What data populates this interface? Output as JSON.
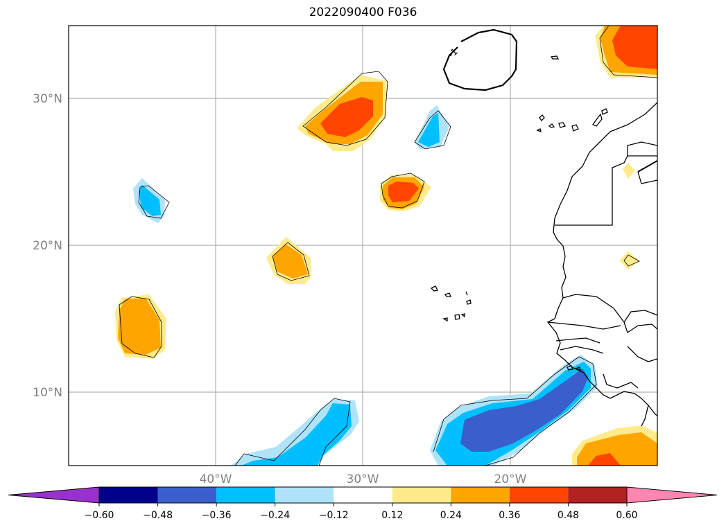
{
  "title": "2022090400 F036",
  "colors": {
    "pos_0.12_0.24": "#ffeb8c",
    "pos_0.24_0.36": "#ffa500",
    "pos_0.36_0.48": "#ff4500",
    "pos_0.48_0.60": "#b22222",
    "pos_over_0.60": "#ff86b0",
    "neg_-0.24_-0.12": "#afe3fa",
    "neg_-0.36_-0.24": "#00bfff",
    "neg_-0.48_-0.36": "#3a5fcd",
    "neg_-0.60_-0.48": "#00008b",
    "neg_under_-0.60": "#9932cc",
    "zero": "#ffffff"
  },
  "axes": {
    "lat_labels": [
      "30°N",
      "20°N",
      "10°N"
    ],
    "lon_labels": [
      "40°W",
      "30°W",
      "20°W"
    ]
  },
  "contour_label": "-1",
  "colorbar": {
    "ticks": [
      "−0.60",
      "−0.48",
      "−0.36",
      "−0.24",
      "−0.12",
      "0.12",
      "0.24",
      "0.36",
      "0.48",
      "0.60"
    ],
    "segments": [
      "#00008b",
      "#3a5fcd",
      "#00bfff",
      "#afe3fa",
      "#ffffff",
      "#ffeb8c",
      "#ffa500",
      "#ff4500",
      "#b22222"
    ],
    "under_color": "#9932cc",
    "over_color": "#ff86b0"
  }
}
